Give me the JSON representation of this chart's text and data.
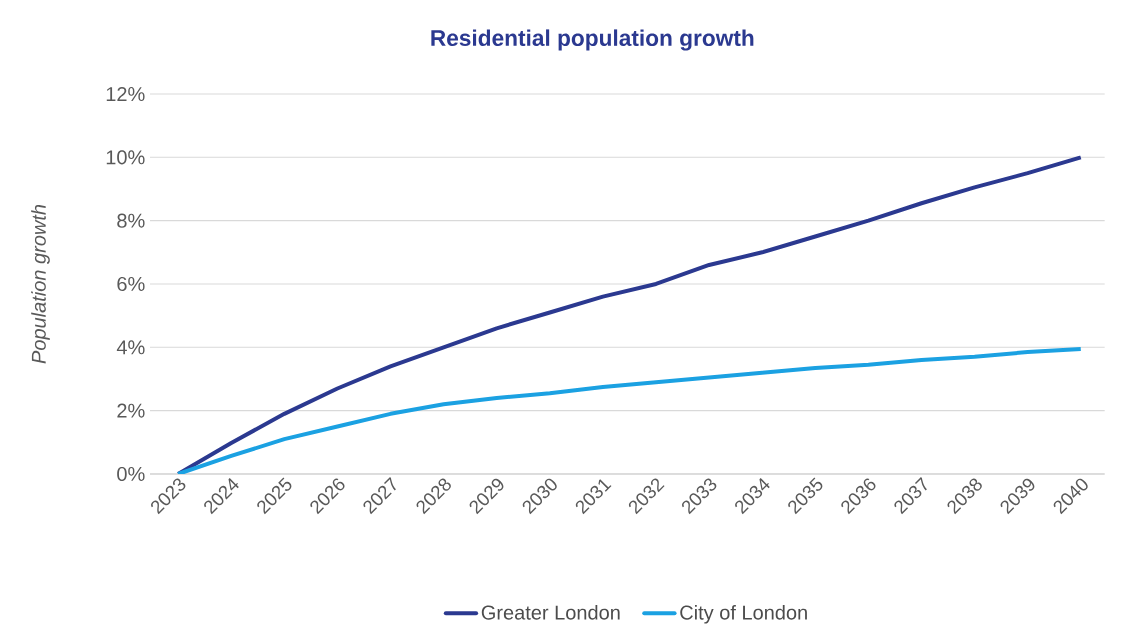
{
  "chart_data": {
    "type": "line",
    "title": "Residential population growth",
    "ylabel": "Population growth",
    "categories": [
      "2023",
      "2024",
      "2025",
      "2026",
      "2027",
      "2028",
      "2029",
      "2030",
      "2031",
      "2032",
      "2033",
      "2034",
      "2035",
      "2036",
      "2037",
      "2038",
      "2039",
      "2040"
    ],
    "series": [
      {
        "name": "Greater London",
        "color": "#2b3990",
        "values": [
          0,
          0.98,
          1.9,
          2.7,
          3.4,
          4.0,
          4.6,
          5.1,
          5.6,
          6.0,
          6.6,
          7.0,
          7.5,
          8.0,
          8.55,
          9.05,
          9.5,
          10.0
        ]
      },
      {
        "name": "City of London",
        "color": "#1ba1e2",
        "values": [
          0,
          0.57,
          1.1,
          1.5,
          1.9,
          2.2,
          2.4,
          2.55,
          2.75,
          2.9,
          3.05,
          3.2,
          3.35,
          3.45,
          3.6,
          3.7,
          3.85,
          3.95
        ]
      }
    ],
    "ylim": [
      0,
      12
    ],
    "yticks": [
      {
        "value": 0,
        "label": "0%"
      },
      {
        "value": 2,
        "label": "2%"
      },
      {
        "value": 4,
        "label": "4%"
      },
      {
        "value": 6,
        "label": "6%"
      },
      {
        "value": 8,
        "label": "8%"
      },
      {
        "value": 10,
        "label": "10%"
      },
      {
        "value": 12,
        "label": "12%"
      }
    ],
    "grid": "y",
    "legend": "bottom",
    "marker": "none",
    "line_style": "solid"
  }
}
